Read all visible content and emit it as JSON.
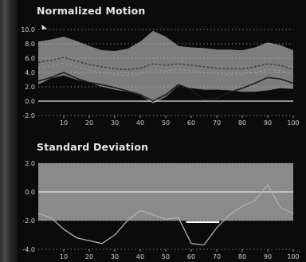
{
  "chart_data": [
    {
      "type": "area",
      "title": "Normalized Motion",
      "xlim": [
        0,
        100
      ],
      "ylim": [
        -2.0,
        10.0
      ],
      "x_ticks": [
        "10",
        "20",
        "30",
        "40",
        "50",
        "60",
        "70",
        "80",
        "90",
        "100"
      ],
      "y_ticks": [
        "10.0",
        "8.0",
        "6.0",
        "4.0",
        "2.0",
        "0.0",
        "-2.0"
      ],
      "x": [
        0,
        5,
        10,
        15,
        20,
        25,
        30,
        35,
        40,
        45,
        50,
        55,
        60,
        65,
        70,
        75,
        80,
        85,
        90,
        95,
        100
      ],
      "band_upper": [
        8.3,
        8.6,
        9.0,
        8.4,
        7.7,
        7.1,
        7.0,
        7.3,
        8.3,
        9.8,
        9.0,
        7.7,
        7.5,
        7.4,
        7.2,
        7.2,
        7.1,
        7.5,
        8.2,
        7.8,
        7.1
      ],
      "band_lower": [
        2.3,
        3.2,
        3.6,
        3.0,
        2.6,
        2.0,
        1.6,
        1.3,
        0.8,
        -0.3,
        0.6,
        2.2,
        1.8,
        1.6,
        1.6,
        1.5,
        1.3,
        1.3,
        1.5,
        1.8,
        1.7
      ],
      "series": [
        {
          "values": [
            5.4,
            5.7,
            6.1,
            5.6,
            5.1,
            4.8,
            4.5,
            4.4,
            4.6,
            5.2,
            5.0,
            5.2,
            5.0,
            4.8,
            4.6,
            4.5,
            4.5,
            4.8,
            5.2,
            5.0,
            4.4
          ]
        },
        {
          "values": [
            2.8,
            3.3,
            4.0,
            3.2,
            2.6,
            2.3,
            1.9,
            1.4,
            0.9,
            0.0,
            0.9,
            2.3,
            1.6,
            0.2,
            0.4,
            1.2,
            1.8,
            2.5,
            3.3,
            3.1,
            2.5
          ]
        }
      ],
      "colors": {
        "band": "#888888",
        "mean": "#3a3a3a",
        "patient": "#1c1c1c",
        "grid": "#c8c8c8"
      }
    },
    {
      "type": "line",
      "title": "Standard Deviation",
      "xlim": [
        0,
        100
      ],
      "ylim": [
        -4.0,
        2.0
      ],
      "x_ticks": [
        "10",
        "20",
        "30",
        "40",
        "50",
        "60",
        "70",
        "80",
        "90",
        "100"
      ],
      "y_ticks": [
        "2.0",
        "0.0",
        "-2.0",
        "-4.0"
      ],
      "normal_band": [
        -2.0,
        2.0
      ],
      "x": [
        0,
        5,
        10,
        15,
        20,
        25,
        30,
        35,
        40,
        45,
        50,
        55,
        60,
        65,
        70,
        75,
        80,
        85,
        90,
        95,
        100
      ],
      "values": [
        -1.5,
        -1.8,
        -2.6,
        -3.2,
        -3.4,
        -3.6,
        -3.0,
        -2.0,
        -1.3,
        -1.6,
        -1.9,
        -1.8,
        -3.6,
        -3.7,
        -2.5,
        -1.6,
        -1.0,
        -0.6,
        0.5,
        -1.1,
        -1.5
      ],
      "highlight_segment": [
        58,
        71,
        -2.1
      ],
      "colors": {
        "band": "#8a8a8a",
        "line": "#b0b0b0",
        "zero": "#e0e0e0",
        "highlight": "#ffffff"
      }
    }
  ]
}
